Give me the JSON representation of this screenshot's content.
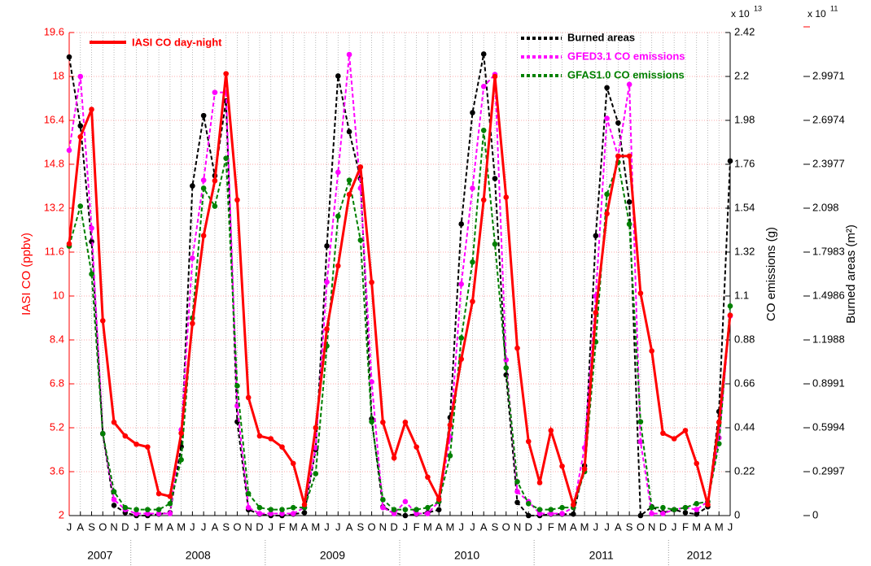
{
  "chart_data": {
    "type": "line",
    "categories": [
      "J",
      "A",
      "S",
      "O",
      "N",
      "D",
      "J",
      "F",
      "M",
      "A",
      "M",
      "J",
      "J",
      "A",
      "S",
      "O",
      "N",
      "D",
      "J",
      "F",
      "M",
      "A",
      "M",
      "J",
      "J",
      "A",
      "S",
      "O",
      "N",
      "D",
      "J",
      "F",
      "M",
      "A",
      "M",
      "J",
      "J",
      "A",
      "S",
      "O",
      "N",
      "D",
      "J",
      "F",
      "M",
      "A",
      "M",
      "J",
      "J",
      "A",
      "S",
      "O",
      "N",
      "D",
      "J",
      "F",
      "M",
      "A",
      "M",
      "J"
    ],
    "years": [
      "2007",
      "2008",
      "2009",
      "2010",
      "2011",
      "2012"
    ],
    "ylabel": "IASI CO (ppbv)",
    "y2label": "CO emissions (g)",
    "y3label": "Burned areas (m²)",
    "y2_scale": {
      "text": "x 10",
      "exponent": "13"
    },
    "y3_scale": {
      "text": "x 10",
      "exponent": "11"
    },
    "ylim": [
      2,
      19.6
    ],
    "yticks": [
      2,
      3.6,
      5.2,
      6.8,
      8.4,
      10,
      11.6,
      13.2,
      14.8,
      16.4,
      18,
      19.6
    ],
    "y2lim": [
      0,
      2.42
    ],
    "y2ticks": [
      0,
      0.22,
      0.44,
      0.66,
      0.88,
      1.1,
      1.32,
      1.54,
      1.76,
      1.98,
      2.2,
      2.42
    ],
    "y3lim": [
      0,
      3.2968
    ],
    "y3ticks": [
      0,
      0.2997,
      0.5994,
      0.8991,
      1.1988,
      1.4986,
      1.7983,
      2.098,
      2.3977,
      2.6974,
      2.9971
    ],
    "grid": true,
    "series": [
      {
        "name": "IASI CO day-night",
        "color": "#ff0000",
        "axis": "y",
        "style": "solid",
        "values": [
          11.9,
          15.8,
          16.8,
          9.1,
          5.4,
          4.9,
          4.6,
          4.5,
          2.8,
          2.7,
          5.0,
          9.0,
          12.2,
          14.2,
          18.1,
          13.5,
          6.3,
          4.9,
          4.8,
          4.5,
          3.9,
          2.4,
          5.2,
          8.8,
          11.1,
          13.7,
          14.7,
          10.5,
          5.4,
          4.1,
          5.4,
          4.5,
          3.4,
          2.6,
          5.3,
          7.7,
          9.8,
          13.5,
          18.0,
          13.6,
          8.1,
          4.7,
          3.2,
          5.1,
          3.8,
          2.4,
          3.7,
          9.4,
          13.0,
          15.1,
          15.1,
          10.1,
          8.0,
          5.0,
          4.8,
          5.1,
          3.9,
          2.4,
          5.4,
          9.3
        ]
      },
      {
        "name": "Burned areas",
        "color": "#000000",
        "axis": "y3",
        "style": "dashed",
        "values": [
          3.13,
          2.66,
          1.87,
          0.56,
          0.07,
          0.02,
          0,
          0,
          0.01,
          0.02,
          0.47,
          2.25,
          2.73,
          2.32,
          2.83,
          0.64,
          0.04,
          0.01,
          0,
          0,
          0.01,
          0.02,
          0.45,
          1.84,
          3.0,
          2.62,
          2.3,
          0.66,
          0.06,
          0.02,
          0,
          0.01,
          0.02,
          0.04,
          0.67,
          1.99,
          2.75,
          3.15,
          2.3,
          0.96,
          0.09,
          0,
          0,
          0.01,
          0.01,
          0.01,
          0.34,
          1.91,
          2.92,
          2.68,
          2.14,
          0,
          0.06,
          0.02,
          0.04,
          0.02,
          0.01,
          0.06,
          0.71,
          2.42
        ]
      },
      {
        "name": "GFED3.1 CO emissions",
        "color": "#ff00ff",
        "axis": "y2",
        "style": "dashed",
        "values": [
          1.83,
          2.2,
          1.44,
          0.41,
          0.08,
          0.03,
          0.01,
          0.01,
          0.01,
          0.01,
          0.43,
          1.29,
          1.68,
          2.12,
          2.12,
          0.55,
          0.04,
          0.01,
          0.01,
          0.01,
          0.01,
          0.04,
          0.34,
          1.17,
          1.72,
          2.31,
          1.64,
          0.67,
          0.04,
          0.01,
          0.07,
          0.01,
          0.01,
          0.07,
          0.39,
          1.16,
          1.64,
          2.15,
          2.21,
          0.78,
          0.12,
          0.07,
          0.01,
          0.01,
          0.01,
          0.04,
          0.34,
          1.1,
          1.99,
          1.8,
          2.16,
          0.37,
          0.01,
          0.01,
          0.03,
          0.04,
          0.03,
          0.07,
          0.39,
          1.0
        ]
      },
      {
        "name": "GFAS1.0 CO emissions",
        "color": "#008000",
        "axis": "y2",
        "style": "dashed",
        "values": [
          1.35,
          1.55,
          1.21,
          0.41,
          0.12,
          0.04,
          0.03,
          0.03,
          0.03,
          0.06,
          0.28,
          0.99,
          1.64,
          1.55,
          1.79,
          0.65,
          0.11,
          0.04,
          0.03,
          0.03,
          0.04,
          0.04,
          0.21,
          0.85,
          1.5,
          1.68,
          1.38,
          0.47,
          0.08,
          0.03,
          0.03,
          0.03,
          0.04,
          0.07,
          0.3,
          0.89,
          1.27,
          1.93,
          1.36,
          0.74,
          0.17,
          0.06,
          0.03,
          0.03,
          0.04,
          0.04,
          0.22,
          0.87,
          1.61,
          1.77,
          1.46,
          0.47,
          0.04,
          0.04,
          0.03,
          0.04,
          0.06,
          0.07,
          0.36,
          1.05
        ]
      }
    ]
  }
}
